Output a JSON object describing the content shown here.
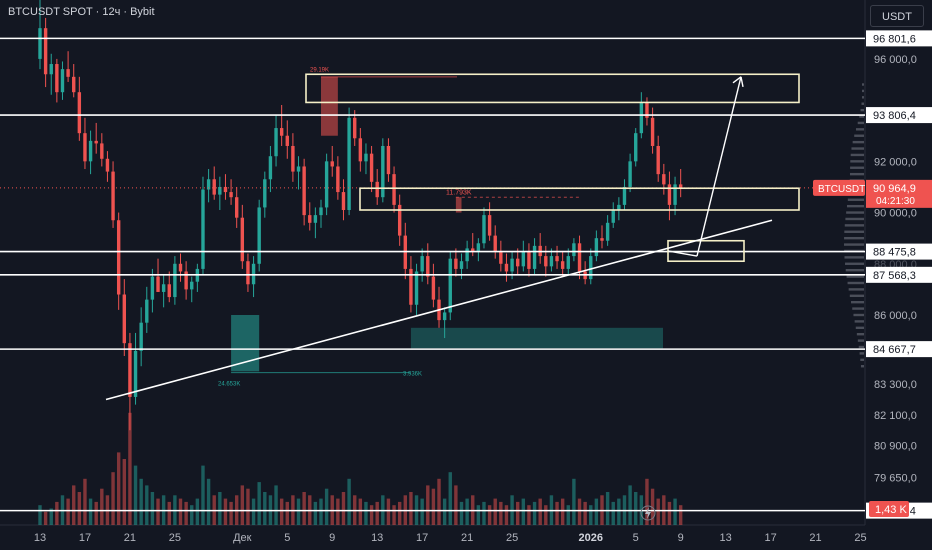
{
  "header": {
    "symbol_title": "BTCUSDT SPOT · 12ч · Bybit",
    "currency": "USDT"
  },
  "colors": {
    "background": "#131722",
    "bull": "#26a69a",
    "bear": "#ef5350",
    "level_line": "#ffffff",
    "zone": "#f5f0c8",
    "axis_text": "#b2b5be"
  },
  "chart_data": {
    "type": "candlestick",
    "symbol": "BTCUSDT",
    "interval": "12ч",
    "exchange": "Bybit",
    "ylim": [
      77800,
      98300
    ],
    "x_ticks": [
      {
        "i": 0,
        "label": "13"
      },
      {
        "i": 8,
        "label": "17"
      },
      {
        "i": 16,
        "label": "21"
      },
      {
        "i": 24,
        "label": "25"
      },
      {
        "i": 36,
        "label": "Дек"
      },
      {
        "i": 44,
        "label": "5"
      },
      {
        "i": 52,
        "label": "9"
      },
      {
        "i": 60,
        "label": "13"
      },
      {
        "i": 68,
        "label": "17"
      },
      {
        "i": 76,
        "label": "21"
      },
      {
        "i": 84,
        "label": "25"
      },
      {
        "i": 98,
        "label": "2026"
      },
      {
        "i": 106,
        "label": "5"
      },
      {
        "i": 114,
        "label": "9"
      },
      {
        "i": 122,
        "label": "13"
      },
      {
        "i": 130,
        "label": "17"
      },
      {
        "i": 138,
        "label": "21"
      },
      {
        "i": 146,
        "label": "25"
      }
    ],
    "y_ticks": [
      "96 000,0",
      "92 000,0",
      "90 000,0",
      "86 000,0",
      "83 300,0",
      "82 100,0",
      "80 900,0",
      "79 650,0"
    ],
    "y_tick_values": [
      96000,
      92000,
      90000,
      86000,
      83300,
      82100,
      80900,
      79650
    ],
    "levels": [
      {
        "value": 96801.6,
        "label": "96 801,6"
      },
      {
        "value": 93806.4,
        "label": "93 806,4"
      },
      {
        "value": 88475.8,
        "label": "88 475,8"
      },
      {
        "value": 87568.3,
        "label": "87 568,3"
      },
      {
        "value": 84667.7,
        "label": "84 667,7"
      },
      {
        "value": 78361.4,
        "label": "78 361,4"
      }
    ],
    "hidden_tick_label": "88 000,0",
    "last_price": {
      "label": "BTCUSDT",
      "value": 90964.9,
      "value_label": "90 964,9",
      "countdown": "04:21:30"
    },
    "volume_label": "1,43 K",
    "annotations": {
      "top_note": "29.19K",
      "mid_note": "11.793K",
      "left_volume": "24.653K",
      "right_volume": "3.936K"
    },
    "candles": [
      {
        "o": 96000,
        "h": 98300,
        "l": 95600,
        "c": 97200
      },
      {
        "o": 97200,
        "h": 97600,
        "l": 94900,
        "c": 95400
      },
      {
        "o": 95400,
        "h": 96200,
        "l": 94600,
        "c": 95800
      },
      {
        "o": 95800,
        "h": 96000,
        "l": 94300,
        "c": 94700
      },
      {
        "o": 94700,
        "h": 95900,
        "l": 94400,
        "c": 95600
      },
      {
        "o": 95600,
        "h": 96300,
        "l": 95100,
        "c": 95300
      },
      {
        "o": 95300,
        "h": 95800,
        "l": 94500,
        "c": 94700
      },
      {
        "o": 94700,
        "h": 95300,
        "l": 92800,
        "c": 93100
      },
      {
        "o": 93100,
        "h": 93700,
        "l": 91700,
        "c": 92000
      },
      {
        "o": 92000,
        "h": 93200,
        "l": 91500,
        "c": 92800
      },
      {
        "o": 92800,
        "h": 93500,
        "l": 92300,
        "c": 92700
      },
      {
        "o": 92700,
        "h": 93100,
        "l": 91800,
        "c": 92100
      },
      {
        "o": 92100,
        "h": 92400,
        "l": 91200,
        "c": 91600
      },
      {
        "o": 91600,
        "h": 92000,
        "l": 89400,
        "c": 89700
      },
      {
        "o": 89700,
        "h": 90000,
        "l": 86200,
        "c": 86800
      },
      {
        "o": 86800,
        "h": 87400,
        "l": 84400,
        "c": 84900
      },
      {
        "o": 84900,
        "h": 85300,
        "l": 81500,
        "c": 82800
      },
      {
        "o": 82800,
        "h": 85300,
        "l": 82500,
        "c": 84600
      },
      {
        "o": 84600,
        "h": 86300,
        "l": 84000,
        "c": 85700
      },
      {
        "o": 85700,
        "h": 87100,
        "l": 85300,
        "c": 86600
      },
      {
        "o": 86600,
        "h": 87800,
        "l": 86100,
        "c": 87500
      },
      {
        "o": 87500,
        "h": 88200,
        "l": 86900,
        "c": 86900
      },
      {
        "o": 86900,
        "h": 87600,
        "l": 86300,
        "c": 87200
      },
      {
        "o": 87200,
        "h": 87700,
        "l": 86500,
        "c": 86700
      },
      {
        "o": 86700,
        "h": 88300,
        "l": 86400,
        "c": 88000
      },
      {
        "o": 88000,
        "h": 88400,
        "l": 87300,
        "c": 87700
      },
      {
        "o": 87700,
        "h": 88100,
        "l": 86600,
        "c": 87000
      },
      {
        "o": 87000,
        "h": 87500,
        "l": 86500,
        "c": 87300
      },
      {
        "o": 87300,
        "h": 88000,
        "l": 86900,
        "c": 87800
      },
      {
        "o": 87800,
        "h": 91400,
        "l": 87600,
        "c": 90900
      },
      {
        "o": 90900,
        "h": 91700,
        "l": 90400,
        "c": 91300
      },
      {
        "o": 91300,
        "h": 91800,
        "l": 90500,
        "c": 90700
      },
      {
        "o": 90700,
        "h": 91400,
        "l": 90100,
        "c": 91000
      },
      {
        "o": 91000,
        "h": 91500,
        "l": 90500,
        "c": 90800
      },
      {
        "o": 90800,
        "h": 91300,
        "l": 90300,
        "c": 90600
      },
      {
        "o": 90600,
        "h": 91000,
        "l": 89400,
        "c": 89800
      },
      {
        "o": 89800,
        "h": 90300,
        "l": 87800,
        "c": 88100
      },
      {
        "o": 88100,
        "h": 88400,
        "l": 86900,
        "c": 87200
      },
      {
        "o": 87200,
        "h": 88300,
        "l": 86700,
        "c": 88000
      },
      {
        "o": 88000,
        "h": 90500,
        "l": 87700,
        "c": 90200
      },
      {
        "o": 90200,
        "h": 91600,
        "l": 89800,
        "c": 91300
      },
      {
        "o": 91300,
        "h": 92600,
        "l": 90800,
        "c": 92200
      },
      {
        "o": 92200,
        "h": 93800,
        "l": 91800,
        "c": 93300
      },
      {
        "o": 93300,
        "h": 94200,
        "l": 92600,
        "c": 93000
      },
      {
        "o": 93000,
        "h": 93600,
        "l": 92100,
        "c": 92600
      },
      {
        "o": 92600,
        "h": 93100,
        "l": 91200,
        "c": 91600
      },
      {
        "o": 91600,
        "h": 92200,
        "l": 90900,
        "c": 91800
      },
      {
        "o": 91800,
        "h": 92100,
        "l": 89500,
        "c": 89900
      },
      {
        "o": 89900,
        "h": 90400,
        "l": 89300,
        "c": 89600
      },
      {
        "o": 89600,
        "h": 90200,
        "l": 89000,
        "c": 89900
      },
      {
        "o": 89900,
        "h": 90500,
        "l": 89400,
        "c": 90200
      },
      {
        "o": 90200,
        "h": 92300,
        "l": 89900,
        "c": 92000
      },
      {
        "o": 92000,
        "h": 92600,
        "l": 91400,
        "c": 91800
      },
      {
        "o": 91800,
        "h": 92200,
        "l": 90500,
        "c": 90800
      },
      {
        "o": 90800,
        "h": 91300,
        "l": 89700,
        "c": 90100
      },
      {
        "o": 90100,
        "h": 94100,
        "l": 89900,
        "c": 93700
      },
      {
        "o": 93700,
        "h": 94000,
        "l": 92600,
        "c": 92900
      },
      {
        "o": 92900,
        "h": 93300,
        "l": 91600,
        "c": 92000
      },
      {
        "o": 92000,
        "h": 92700,
        "l": 91500,
        "c": 92300
      },
      {
        "o": 92300,
        "h": 92600,
        "l": 90800,
        "c": 91200
      },
      {
        "o": 91200,
        "h": 91700,
        "l": 90300,
        "c": 90600
      },
      {
        "o": 90600,
        "h": 92900,
        "l": 90400,
        "c": 92600
      },
      {
        "o": 92600,
        "h": 92900,
        "l": 91200,
        "c": 91500
      },
      {
        "o": 91500,
        "h": 91800,
        "l": 90000,
        "c": 90300
      },
      {
        "o": 90300,
        "h": 90700,
        "l": 88700,
        "c": 89100
      },
      {
        "o": 89100,
        "h": 89600,
        "l": 87400,
        "c": 87800
      },
      {
        "o": 87800,
        "h": 88300,
        "l": 86100,
        "c": 86400
      },
      {
        "o": 86400,
        "h": 88000,
        "l": 86000,
        "c": 87700
      },
      {
        "o": 87700,
        "h": 88600,
        "l": 87300,
        "c": 88300
      },
      {
        "o": 88300,
        "h": 88800,
        "l": 87200,
        "c": 87500
      },
      {
        "o": 87500,
        "h": 88000,
        "l": 86300,
        "c": 86600
      },
      {
        "o": 86600,
        "h": 87100,
        "l": 85500,
        "c": 85800
      },
      {
        "o": 85800,
        "h": 86300,
        "l": 85100,
        "c": 86100
      },
      {
        "o": 86100,
        "h": 88500,
        "l": 85800,
        "c": 88200
      },
      {
        "o": 88200,
        "h": 88600,
        "l": 87500,
        "c": 87800
      },
      {
        "o": 87800,
        "h": 88400,
        "l": 87400,
        "c": 88100
      },
      {
        "o": 88100,
        "h": 88900,
        "l": 87800,
        "c": 88600
      },
      {
        "o": 88600,
        "h": 89200,
        "l": 88300,
        "c": 88500
      },
      {
        "o": 88500,
        "h": 89000,
        "l": 88100,
        "c": 88800
      },
      {
        "o": 88800,
        "h": 90200,
        "l": 88600,
        "c": 89900
      },
      {
        "o": 89900,
        "h": 90400,
        "l": 88900,
        "c": 89100
      },
      {
        "o": 89100,
        "h": 89500,
        "l": 88200,
        "c": 88500
      },
      {
        "o": 88500,
        "h": 88900,
        "l": 87700,
        "c": 88000
      },
      {
        "o": 88000,
        "h": 88400,
        "l": 87300,
        "c": 87700
      },
      {
        "o": 87700,
        "h": 88500,
        "l": 87400,
        "c": 88200
      },
      {
        "o": 88200,
        "h": 88600,
        "l": 87600,
        "c": 87900
      },
      {
        "o": 87900,
        "h": 88900,
        "l": 87700,
        "c": 88500
      },
      {
        "o": 88500,
        "h": 88800,
        "l": 87500,
        "c": 87800
      },
      {
        "o": 87800,
        "h": 89000,
        "l": 87600,
        "c": 88700
      },
      {
        "o": 88700,
        "h": 89200,
        "l": 88000,
        "c": 88300
      },
      {
        "o": 88300,
        "h": 88700,
        "l": 87500,
        "c": 87900
      },
      {
        "o": 87900,
        "h": 88600,
        "l": 87700,
        "c": 88300
      },
      {
        "o": 88300,
        "h": 88700,
        "l": 87800,
        "c": 88100
      },
      {
        "o": 88100,
        "h": 88500,
        "l": 87500,
        "c": 87800
      },
      {
        "o": 87800,
        "h": 88600,
        "l": 87600,
        "c": 88300
      },
      {
        "o": 88300,
        "h": 89000,
        "l": 88100,
        "c": 88800
      },
      {
        "o": 88800,
        "h": 89100,
        "l": 87400,
        "c": 87700
      },
      {
        "o": 87700,
        "h": 88100,
        "l": 87200,
        "c": 87400
      },
      {
        "o": 87400,
        "h": 88600,
        "l": 87200,
        "c": 88300
      },
      {
        "o": 88300,
        "h": 89300,
        "l": 88100,
        "c": 89000
      },
      {
        "o": 89000,
        "h": 89500,
        "l": 88600,
        "c": 88900
      },
      {
        "o": 88900,
        "h": 89900,
        "l": 88700,
        "c": 89600
      },
      {
        "o": 89600,
        "h": 90400,
        "l": 89400,
        "c": 90100
      },
      {
        "o": 90100,
        "h": 90600,
        "l": 89700,
        "c": 90300
      },
      {
        "o": 90300,
        "h": 91300,
        "l": 90100,
        "c": 91000
      },
      {
        "o": 91000,
        "h": 92300,
        "l": 90800,
        "c": 92000
      },
      {
        "o": 92000,
        "h": 93300,
        "l": 91800,
        "c": 93100
      },
      {
        "o": 93100,
        "h": 94700,
        "l": 92900,
        "c": 94300
      },
      {
        "o": 94300,
        "h": 94500,
        "l": 93400,
        "c": 93700
      },
      {
        "o": 93700,
        "h": 94100,
        "l": 92300,
        "c": 92600
      },
      {
        "o": 92600,
        "h": 93000,
        "l": 91200,
        "c": 91500
      },
      {
        "o": 91500,
        "h": 91900,
        "l": 90700,
        "c": 91100
      },
      {
        "o": 91100,
        "h": 91600,
        "l": 89700,
        "c": 90300
      },
      {
        "o": 90300,
        "h": 91400,
        "l": 89900,
        "c": 91100
      },
      {
        "o": 91100,
        "h": 91700,
        "l": 90600,
        "c": 90965
      }
    ],
    "volumes": [
      6,
      4,
      5,
      7,
      9,
      8,
      12,
      10,
      14,
      8,
      7,
      11,
      9,
      16,
      22,
      20,
      34,
      18,
      14,
      12,
      10,
      8,
      9,
      7,
      9,
      8,
      7,
      6,
      8,
      18,
      14,
      9,
      10,
      8,
      7,
      9,
      12,
      11,
      8,
      13,
      10,
      9,
      12,
      8,
      7,
      9,
      8,
      10,
      9,
      7,
      8,
      11,
      9,
      8,
      10,
      14,
      9,
      8,
      7,
      6,
      7,
      9,
      8,
      6,
      7,
      9,
      10,
      9,
      8,
      12,
      11,
      14,
      8,
      16,
      12,
      7,
      8,
      9,
      6,
      7,
      6,
      8,
      7,
      6,
      9,
      7,
      8,
      6,
      7,
      8,
      6,
      9,
      7,
      8,
      6,
      14,
      8,
      7,
      6,
      8,
      9,
      10,
      7,
      8,
      9,
      12,
      10,
      9,
      14,
      11,
      8,
      9,
      7,
      8,
      6
    ]
  }
}
